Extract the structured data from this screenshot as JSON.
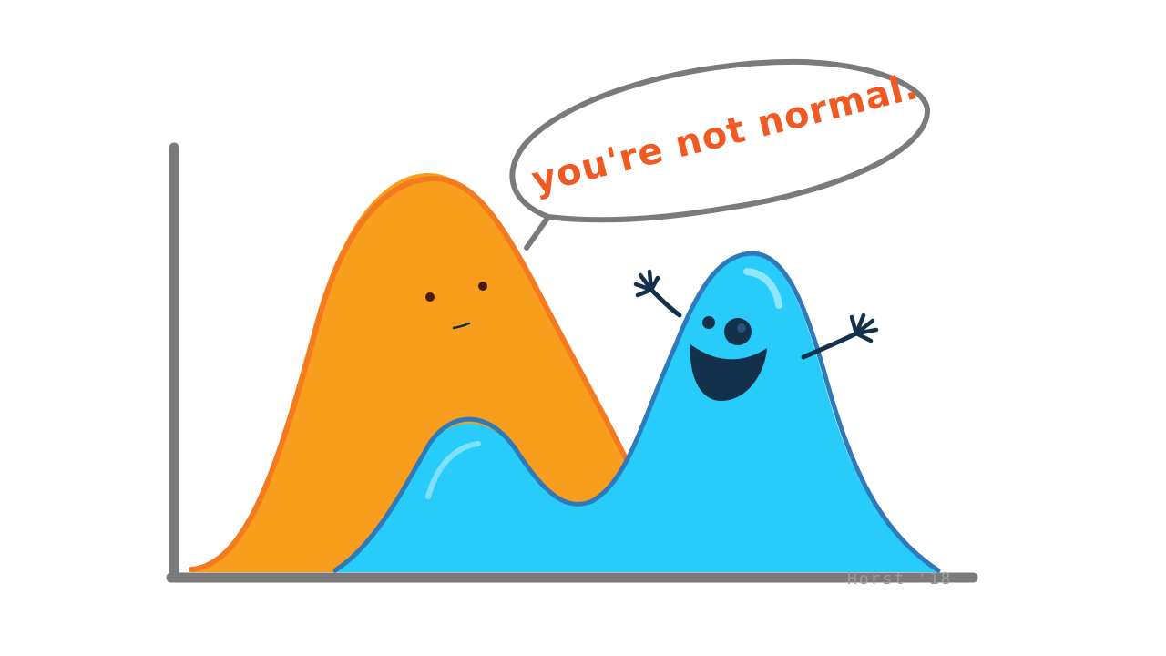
{
  "speech_bubble": {
    "text": "you're not normal."
  },
  "signature": {
    "text": "Horst '18"
  },
  "characters": {
    "orange": {
      "name": "orange-normal-distribution",
      "expression": "neutral"
    },
    "blue": {
      "name": "blue-bimodal-distribution",
      "expression": "happy"
    }
  },
  "colors": {
    "orange_fill": "#F89D1C",
    "orange_outline": "#F47A1F",
    "blue_fill": "#28CCFB",
    "blue_outline": "#2E79B9",
    "axis": "#7A7A7A",
    "speech_text": "#F05A22",
    "speech_outline": "#7A7A7A",
    "face_dark": "#13314A",
    "signature": "#9A9A9A"
  }
}
